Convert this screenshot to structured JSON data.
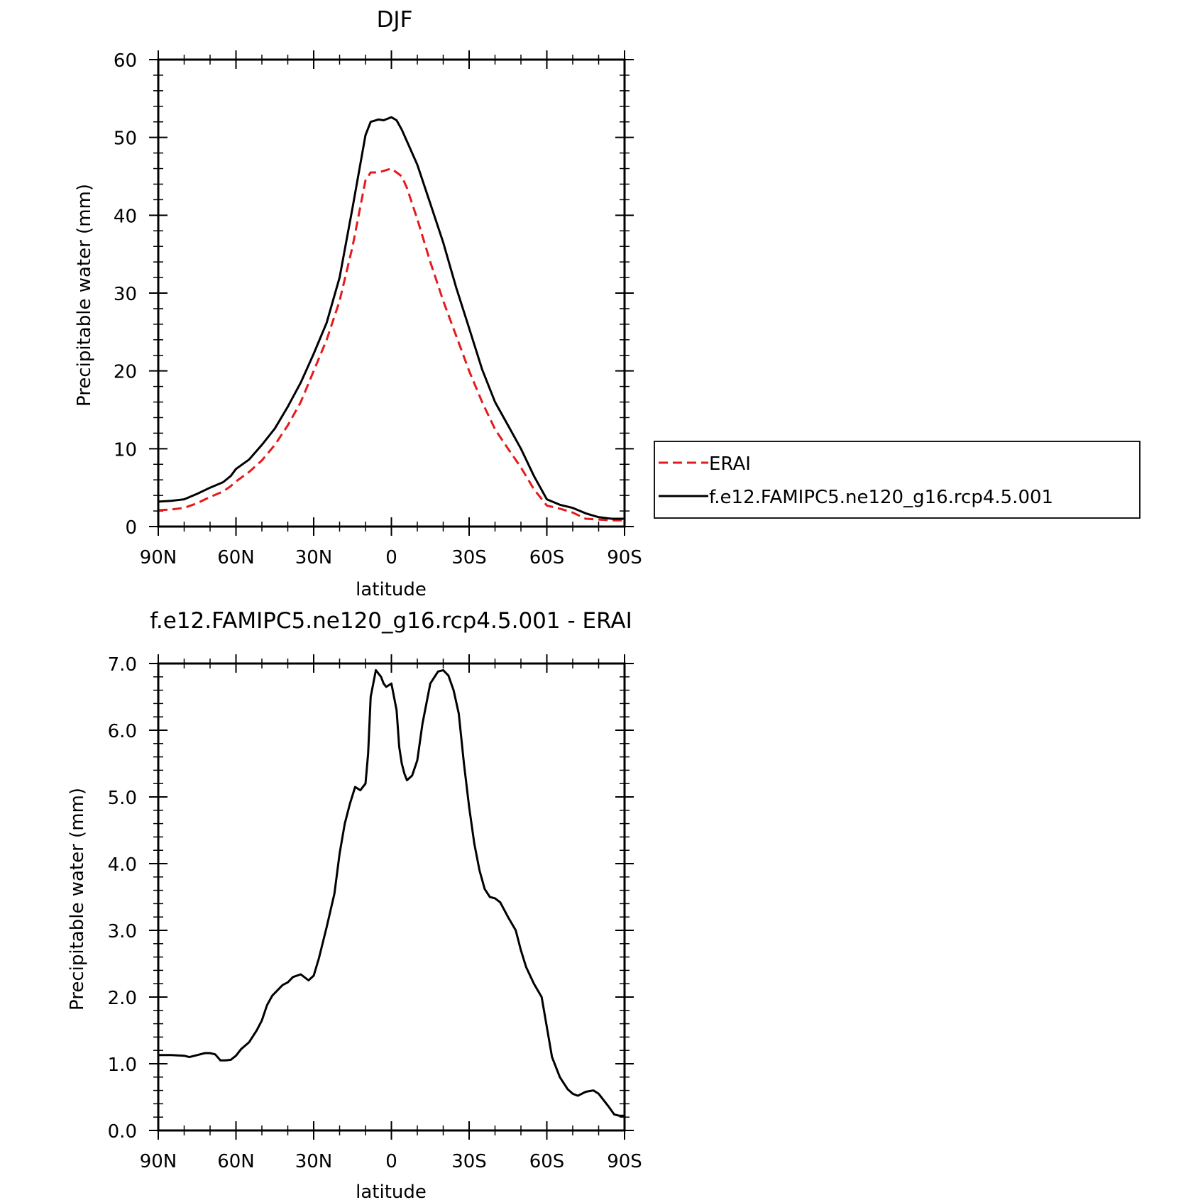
{
  "chart_data": [
    {
      "type": "line",
      "title": "DJF",
      "xlabel": "latitude",
      "ylabel": "Precipitable water (mm)",
      "xlim": [
        90,
        -90
      ],
      "ylim": [
        0,
        60
      ],
      "xticks": [
        90,
        60,
        30,
        0,
        -30,
        -60,
        -90
      ],
      "xtick_labels": [
        "90N",
        "60N",
        "30N",
        "0",
        "30S",
        "60S",
        "90S"
      ],
      "yticks": [
        0,
        10,
        20,
        30,
        40,
        50,
        60
      ],
      "ytick_labels": [
        "0",
        "10",
        "20",
        "30",
        "40",
        "50",
        "60"
      ],
      "legend_position": "right",
      "series": [
        {
          "name": "ERAI",
          "color": "#e41a1c",
          "dash": "dashed",
          "x": [
            90,
            85,
            80,
            75,
            70,
            65,
            62,
            60,
            55,
            50,
            45,
            40,
            35,
            30,
            25,
            20,
            15,
            10,
            8,
            5,
            3,
            0,
            -2,
            -4,
            -6,
            -8,
            -10,
            -15,
            -20,
            -25,
            -30,
            -35,
            -40,
            -45,
            -50,
            -55,
            -60,
            -65,
            -70,
            -75,
            -80,
            -85,
            -88,
            -90
          ],
          "y": [
            2.1,
            2.2,
            2.4,
            3.0,
            3.8,
            4.5,
            5.2,
            5.8,
            7.0,
            8.5,
            10.5,
            13.0,
            16.0,
            20.0,
            24.0,
            29.0,
            36.0,
            44.5,
            45.5,
            45.5,
            45.7,
            46.0,
            45.5,
            45.0,
            43.5,
            41.5,
            39.5,
            34.0,
            29.0,
            24.5,
            20.0,
            16.0,
            12.5,
            10.0,
            7.6,
            4.8,
            2.7,
            2.3,
            1.8,
            1.0,
            0.9,
            0.8,
            0.8,
            0.8
          ]
        },
        {
          "name": "f.e12.FAMIPC5.ne120_g16.rcp4.5.001",
          "color": "#000000",
          "dash": "solid",
          "x": [
            90,
            85,
            80,
            75,
            70,
            65,
            62,
            60,
            55,
            50,
            45,
            40,
            35,
            30,
            25,
            20,
            15,
            10,
            8,
            5,
            3,
            0,
            -2,
            -4,
            -6,
            -8,
            -10,
            -15,
            -20,
            -25,
            -30,
            -35,
            -40,
            -45,
            -50,
            -55,
            -60,
            -65,
            -70,
            -75,
            -80,
            -85,
            -88,
            -90
          ],
          "y": [
            3.2,
            3.3,
            3.5,
            4.2,
            5.0,
            5.7,
            6.5,
            7.4,
            8.6,
            10.5,
            12.6,
            15.4,
            18.5,
            22.2,
            26.2,
            32.0,
            41.0,
            50.3,
            52.0,
            52.3,
            52.2,
            52.6,
            52.2,
            51.0,
            49.5,
            48.0,
            46.5,
            41.5,
            36.5,
            30.7,
            25.5,
            20.2,
            16.0,
            13.0,
            10.0,
            6.5,
            3.5,
            2.8,
            2.4,
            1.7,
            1.2,
            1.0,
            1.0,
            1.0
          ]
        }
      ]
    },
    {
      "type": "line",
      "title": "f.e12.FAMIPC5.ne120_g16.rcp4.5.001 - ERAI",
      "xlabel": "latitude",
      "ylabel": "Precipitable water (mm)",
      "xlim": [
        90,
        -90
      ],
      "ylim": [
        0,
        7
      ],
      "xticks": [
        90,
        60,
        30,
        0,
        -30,
        -60,
        -90
      ],
      "xtick_labels": [
        "90N",
        "60N",
        "30N",
        "0",
        "30S",
        "60S",
        "90S"
      ],
      "yticks": [
        0,
        1,
        2,
        3,
        4,
        5,
        6,
        7
      ],
      "ytick_labels": [
        "0.0",
        "1.0",
        "2.0",
        "3.0",
        "4.0",
        "5.0",
        "6.0",
        "7.0"
      ],
      "series": [
        {
          "color": "#000000",
          "dash": "solid",
          "x": [
            90,
            85,
            80,
            78,
            75,
            72,
            70,
            68,
            66,
            64,
            62,
            60,
            58,
            55,
            52,
            50,
            48,
            46,
            44,
            42,
            40,
            38,
            35,
            32,
            30,
            28,
            25,
            22,
            20,
            18,
            16,
            14,
            12,
            10,
            9,
            8,
            6,
            4,
            3,
            2,
            0,
            -2,
            -3,
            -4,
            -5,
            -6,
            -8,
            -10,
            -12,
            -15,
            -18,
            -20,
            -22,
            -24,
            -26,
            -28,
            -30,
            -32,
            -34,
            -36,
            -38,
            -40,
            -42,
            -45,
            -48,
            -50,
            -52,
            -55,
            -58,
            -60,
            -62,
            -65,
            -68,
            -70,
            -72,
            -75,
            -78,
            -80,
            -82,
            -84,
            -86,
            -88,
            -90
          ],
          "y": [
            1.13,
            1.13,
            1.12,
            1.1,
            1.13,
            1.16,
            1.16,
            1.14,
            1.05,
            1.05,
            1.06,
            1.12,
            1.22,
            1.32,
            1.5,
            1.65,
            1.88,
            2.02,
            2.1,
            2.18,
            2.22,
            2.3,
            2.34,
            2.25,
            2.32,
            2.58,
            3.05,
            3.55,
            4.15,
            4.6,
            4.9,
            5.15,
            5.1,
            5.2,
            5.65,
            6.5,
            6.9,
            6.8,
            6.7,
            6.65,
            6.7,
            6.3,
            5.75,
            5.5,
            5.35,
            5.25,
            5.32,
            5.55,
            6.1,
            6.7,
            6.88,
            6.9,
            6.82,
            6.6,
            6.25,
            5.5,
            4.85,
            4.3,
            3.9,
            3.62,
            3.5,
            3.48,
            3.42,
            3.2,
            3.0,
            2.7,
            2.45,
            2.2,
            2.0,
            1.55,
            1.1,
            0.8,
            0.62,
            0.55,
            0.52,
            0.58,
            0.6,
            0.55,
            0.45,
            0.35,
            0.24,
            0.22,
            0.22
          ]
        }
      ]
    }
  ]
}
